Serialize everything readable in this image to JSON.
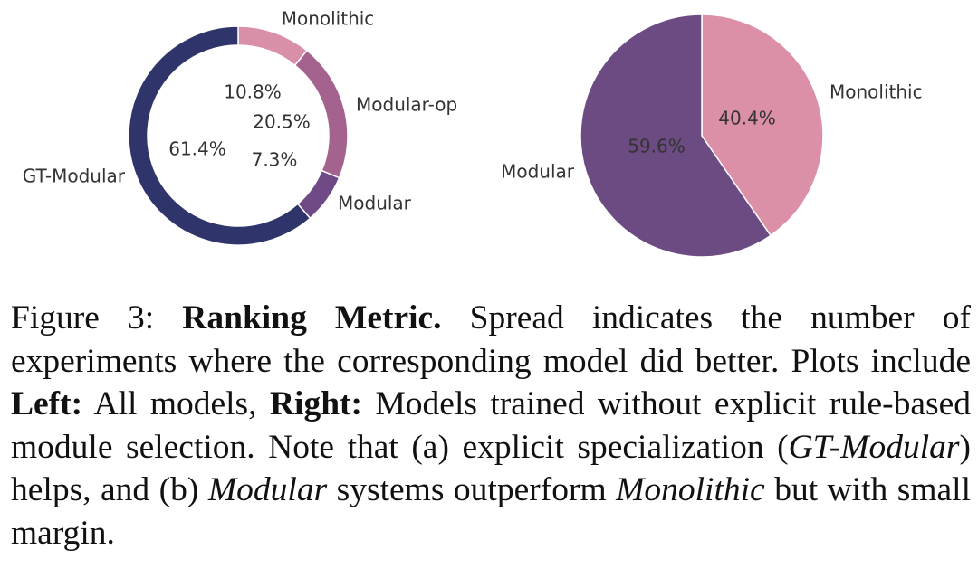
{
  "chart_data": [
    {
      "type": "pie",
      "variant": "donut",
      "panel": "Left",
      "slices": [
        {
          "label": "Monolithic",
          "value": 10.8,
          "value_label": "10.8%",
          "color": "#d98fa7"
        },
        {
          "label": "Modular-op",
          "value": 20.5,
          "value_label": "20.5%",
          "color": "#a4628f"
        },
        {
          "label": "Modular",
          "value": 7.3,
          "value_label": "7.3%",
          "color": "#6f4a87"
        },
        {
          "label": "GT-Modular",
          "value": 61.4,
          "value_label": "61.4%",
          "color": "#2f356a"
        }
      ],
      "start": "top",
      "direction": "clockwise"
    },
    {
      "type": "pie",
      "panel": "Right",
      "slices": [
        {
          "label": "Monolithic",
          "value": 40.4,
          "value_label": "40.4%",
          "color": "#db90a8"
        },
        {
          "label": "Modular",
          "value": 59.6,
          "value_label": "59.6%",
          "color": "#6c4a82"
        }
      ],
      "start": "top",
      "direction": "clockwise"
    }
  ],
  "caption": {
    "figure_label": "Figure 3:",
    "bold_title": "Ranking Metric.",
    "text_1": "Spread indicates the number of experiments where the corresponding model did better. Plots include",
    "left_label": "Left:",
    "text_2": "All models,",
    "right_label": "Right:",
    "text_3": "Models trained without explicit rule-based module selection. Note that (a) explicit specialization (",
    "italic_1": "GT-Modular",
    "text_4": ") helps, and (b)",
    "italic_2": "Modular",
    "text_5": "systems outperform",
    "italic_3": "Monolithic",
    "text_6": "but with small margin."
  }
}
